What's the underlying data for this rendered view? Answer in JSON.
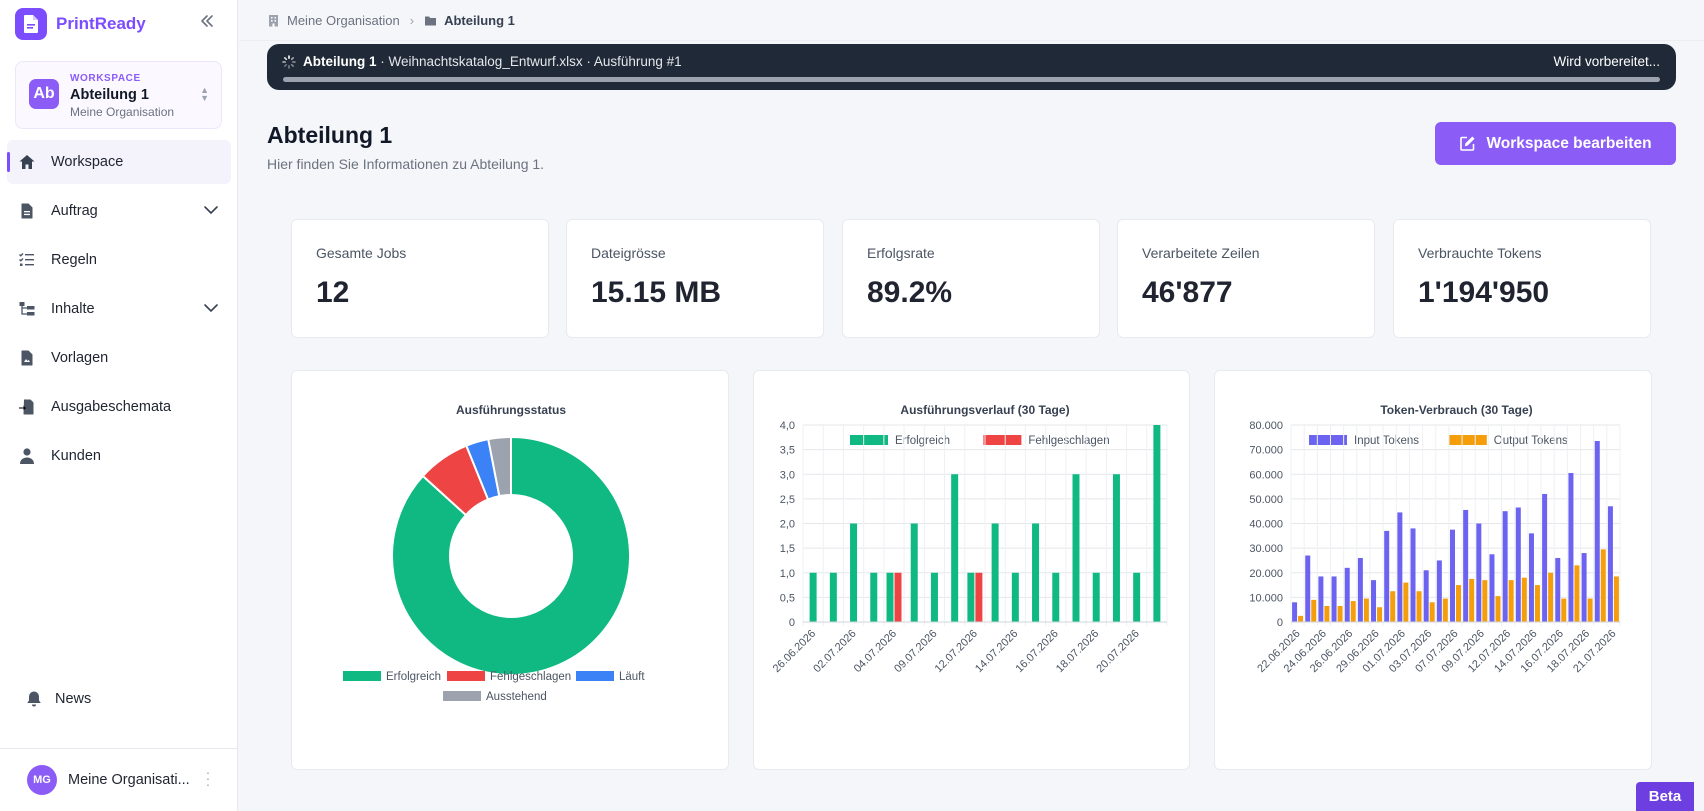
{
  "app": {
    "name": "PrintReady"
  },
  "workspace_card": {
    "initials": "Ab",
    "eyebrow": "WORKSPACE",
    "name": "Abteilung 1",
    "org": "Meine Organisation"
  },
  "sidebar": {
    "items": [
      {
        "label": "Workspace",
        "icon": "home-icon",
        "active": true,
        "expandable": false
      },
      {
        "label": "Auftrag",
        "icon": "document-icon",
        "active": false,
        "expandable": true
      },
      {
        "label": "Regeln",
        "icon": "checklist-icon",
        "active": false,
        "expandable": false
      },
      {
        "label": "Inhalte",
        "icon": "hierarchy-icon",
        "active": false,
        "expandable": true
      },
      {
        "label": "Vorlagen",
        "icon": "template-icon",
        "active": false,
        "expandable": false
      },
      {
        "label": "Ausgabeschemata",
        "icon": "export-icon",
        "active": false,
        "expandable": false
      },
      {
        "label": "Kunden",
        "icon": "user-icon",
        "active": false,
        "expandable": false
      }
    ],
    "news_label": "News"
  },
  "user": {
    "initials": "MG",
    "name": "Meine Organisati..."
  },
  "breadcrumb": {
    "org": "Meine Organisation",
    "current": "Abteilung 1"
  },
  "run_banner": {
    "workspace": "Abteilung 1",
    "details": " · Weihnachtskatalog_Entwurf.xlsx · Ausführung #1",
    "status": "Wird vorbereitet...",
    "progress": 1.0
  },
  "page": {
    "title": "Abteilung 1",
    "subtitle": "Hier finden Sie Informationen zu Abteilung 1.",
    "edit_button": "Workspace bearbeiten"
  },
  "stats": [
    {
      "label": "Gesamte Jobs",
      "value": "12"
    },
    {
      "label": "Dateigrösse",
      "value": "15.15 MB"
    },
    {
      "label": "Erfolgsrate",
      "value": "89.2%"
    },
    {
      "label": "Verarbeitete Zeilen",
      "value": "46'877"
    },
    {
      "label": "Verbrauchte Tokens",
      "value": "1'194'950"
    }
  ],
  "beta_label": "Beta",
  "colors": {
    "accent": "#8b5cf6",
    "success": "#10b981",
    "error": "#ef4444",
    "running": "#3b82f6",
    "pending": "#9ca3af",
    "input": "#6c63f0",
    "output": "#f59e0b"
  },
  "chart_data": [
    {
      "type": "pie",
      "title": "Ausführungsstatus",
      "donut": true,
      "labels": [
        "Erfolgreich",
        "Fehlgeschlagen",
        "Läuft",
        "Ausstehend"
      ],
      "values": [
        85,
        7,
        3,
        3
      ],
      "colors": [
        "#10b981",
        "#ef4444",
        "#3b82f6",
        "#9ca3af"
      ],
      "legend": "bottom"
    },
    {
      "type": "bar",
      "title": "Ausführungsverlauf (30 Tage)",
      "x": [
        "26.06.2026",
        "",
        "02.07.2026",
        "",
        "04.07.2026",
        "",
        "09.07.2026",
        "",
        "12.07.2026",
        "",
        "14.07.2026",
        "",
        "16.07.2026",
        "",
        "18.07.2026",
        "",
        "20.07.2026",
        ""
      ],
      "series": [
        {
          "name": "Erfolgreich",
          "color": "#10b981",
          "values": [
            1,
            1,
            2,
            1,
            1,
            2,
            1,
            3,
            1,
            2,
            1,
            2,
            1,
            3,
            1,
            3,
            1,
            4
          ]
        },
        {
          "name": "Fehlgeschlagen",
          "color": "#ef4444",
          "values": [
            0,
            0,
            0,
            0,
            1,
            0,
            0,
            0,
            1,
            0,
            0,
            0,
            0,
            0,
            0,
            0,
            0,
            0
          ]
        }
      ],
      "ylim": [
        0,
        4
      ],
      "yticks": [
        "4,0",
        "3,5",
        "3,0",
        "2,5",
        "2,0",
        "1,5",
        "1,0",
        "0,5",
        "0"
      ],
      "legend": "top",
      "grid": true
    },
    {
      "type": "bar",
      "title": "Token-Verbrauch (30 Tage)",
      "x": [
        "22.06.2026",
        "",
        "24.06.2026",
        "",
        "26.06.2026",
        "",
        "29.06.2026",
        "",
        "01.07.2026",
        "",
        "03.07.2026",
        "",
        "07.07.2026",
        "",
        "09.07.2026",
        "",
        "12.07.2026",
        "",
        "14.07.2026",
        "",
        "16.07.2026",
        "",
        "18.07.2026",
        "",
        "21.07.2026"
      ],
      "series": [
        {
          "name": "Input Tokens",
          "color": "#6c63f0",
          "values": [
            8000,
            27000,
            18500,
            18500,
            22000,
            26000,
            17000,
            37000,
            44500,
            38000,
            21000,
            25000,
            37500,
            45500,
            40000,
            27500,
            45000,
            46500,
            36000,
            52000,
            26000,
            60500,
            28000,
            73500,
            47000
          ]
        },
        {
          "name": "Output Tokens",
          "color": "#f59e0b",
          "values": [
            2500,
            9000,
            6500,
            6500,
            8500,
            9500,
            6000,
            12500,
            16000,
            12500,
            8000,
            9500,
            15000,
            17500,
            17000,
            10500,
            17000,
            18000,
            15000,
            20000,
            9500,
            23000,
            9500,
            29500,
            18500
          ]
        }
      ],
      "ylim": [
        0,
        80000
      ],
      "yticks": [
        "80.000",
        "70.000",
        "60.000",
        "50.000",
        "40.000",
        "30.000",
        "20.000",
        "10.000",
        "0"
      ],
      "legend": "top",
      "grid": true
    }
  ]
}
